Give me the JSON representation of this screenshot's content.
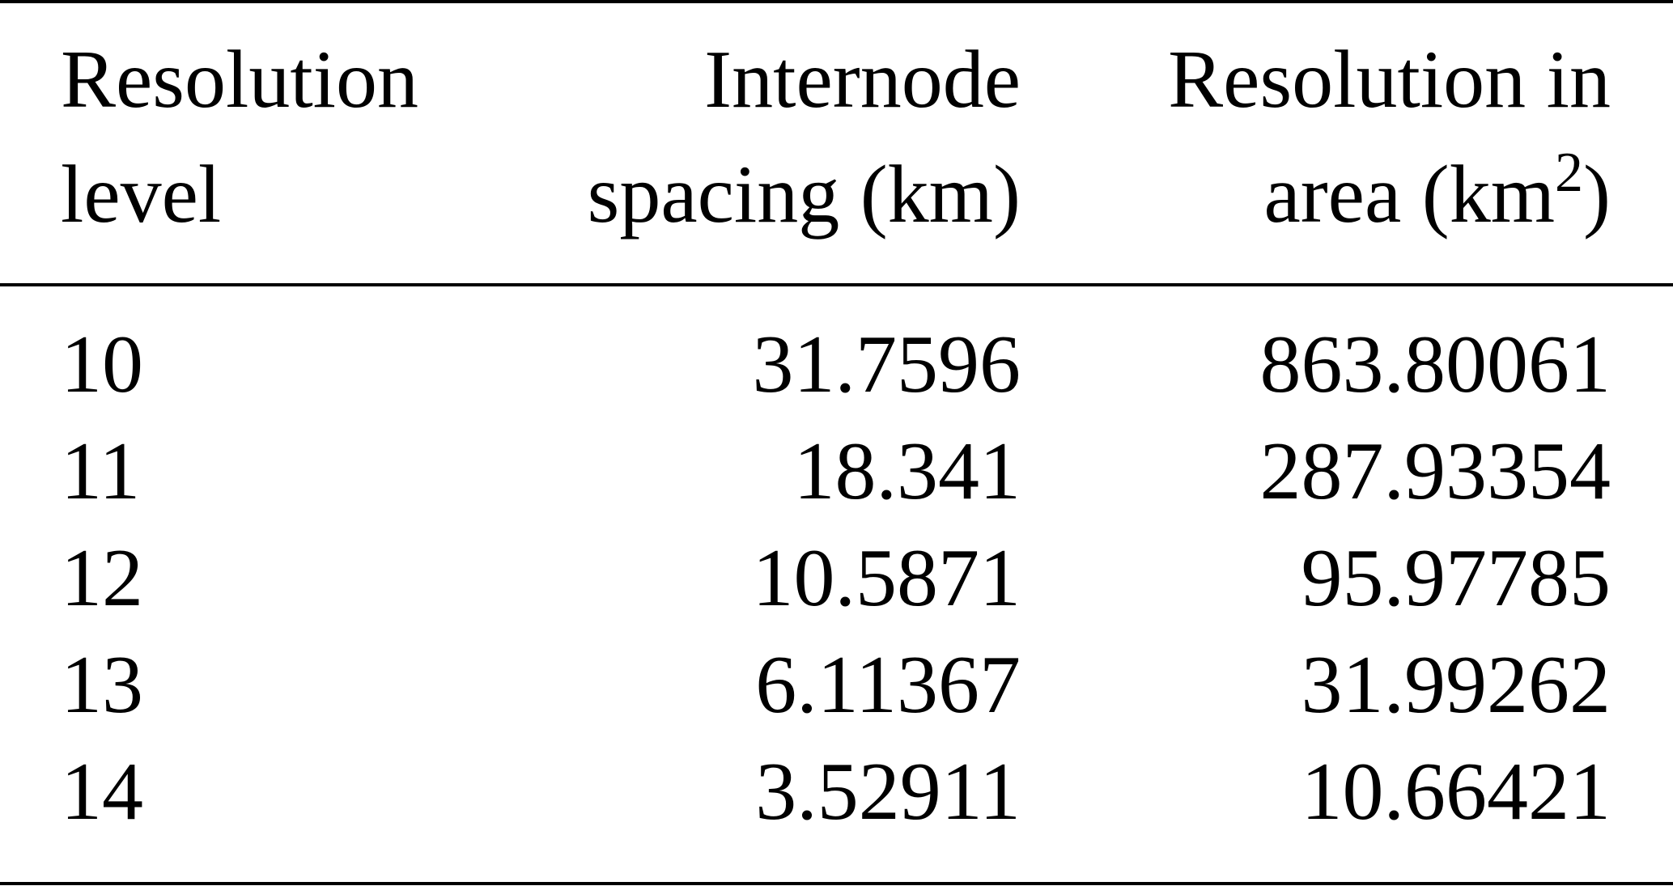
{
  "table": {
    "header": [
      [
        "Resolution",
        "level"
      ],
      [
        "Internode",
        "spacing (km)"
      ],
      [
        "Resolution in",
        "area (km",
        "2",
        ")"
      ]
    ],
    "rows": [
      [
        "10",
        "31.7596",
        "863.80061"
      ],
      [
        "11",
        "18.341",
        "287.93354"
      ],
      [
        "12",
        "10.5871",
        "95.97785"
      ],
      [
        "13",
        "6.11367",
        "31.99262"
      ],
      [
        "14",
        "3.52911",
        "10.66421"
      ]
    ]
  }
}
